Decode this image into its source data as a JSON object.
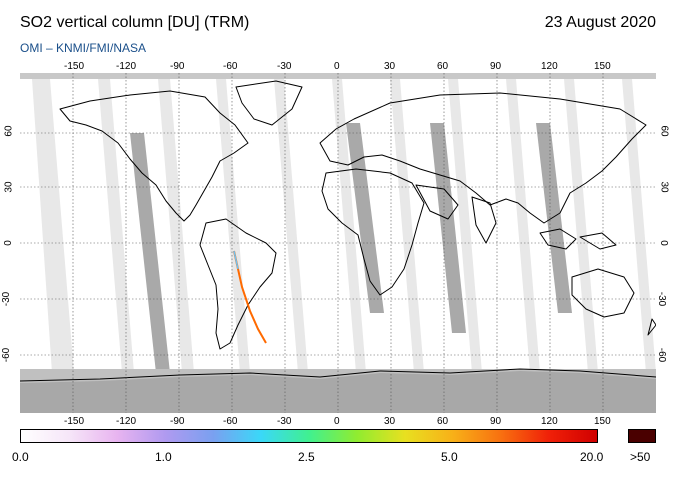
{
  "header": {
    "title": "SO2 vertical column [DU] (TRM)",
    "date": "23 August 2020",
    "credit": "OMI  –  KNMI/FMI/NASA"
  },
  "map": {
    "lon_ticks": [
      "-150",
      "-120",
      "-90",
      "-60",
      "-30",
      "0",
      "30",
      "60",
      "90",
      "120",
      "150"
    ],
    "lat_ticks": [
      "60",
      "30",
      "0",
      "-30",
      "-60"
    ],
    "colors": {
      "background": "#e8e8e8",
      "swath": "#ffffff",
      "gap_light": "#c8c8c8",
      "gap_dark": "#a8a8a8",
      "polar_night": "#c0c0c0",
      "coastline": "#000000",
      "plume": "#ff6a00"
    }
  },
  "colorbar": {
    "labels": [
      "0.0",
      "1.0",
      "2.5",
      "5.0",
      "20.0",
      ">50"
    ],
    "gradient": [
      "#ffffff",
      "#f6e6f8",
      "#e8b4f0",
      "#b09af0",
      "#7aa0f0",
      "#3ad8f8",
      "#40f090",
      "#90ec30",
      "#e8e020",
      "#f8b018",
      "#f87010",
      "#f02008",
      "#d00000"
    ],
    "overflow_color": "#4a0000"
  }
}
